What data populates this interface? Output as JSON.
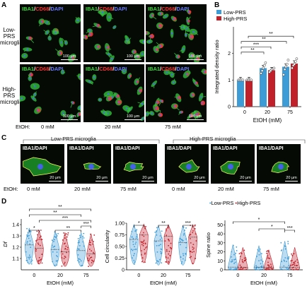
{
  "panels": {
    "A": "A",
    "B": "B",
    "C": "C",
    "D": "D"
  },
  "panelA": {
    "label_iba1": "IBA1",
    "label_cd68": "CD68",
    "label_dapi": "DAPI",
    "slash": "/",
    "row_low": [
      "Low-PRS",
      "microglia"
    ],
    "row_high": [
      "High-PRS",
      "microglia"
    ],
    "scalebar": "100 μm",
    "etoh_label": "EtOH:",
    "conditions": [
      "0 mM",
      "20 mM",
      "75 mM"
    ]
  },
  "panelB": {
    "ylabel": "Integrated density ratio",
    "xlabel": "EtOH (mM)",
    "legend": [
      "Low-PRS",
      "High-PRS"
    ],
    "sig": [
      "**",
      "***",
      "**",
      "**"
    ]
  },
  "panelC": {
    "group_low": "Low-PRS microglia",
    "group_high": "High-PRS microglia",
    "label": "IBA1/DAPI",
    "scalebar": "20 μm",
    "etoh_label": "EtOH:",
    "conditions": [
      "0 mM",
      "20 mM",
      "75 mM"
    ]
  },
  "panelD": {
    "legend": [
      "Low-PRS",
      "High-PRS"
    ],
    "xlabel": "EtOH (mM)",
    "plot1": {
      "ylabel": "Df",
      "sig": [
        "**",
        "**",
        "***",
        "*",
        "**",
        "***"
      ]
    },
    "plot2": {
      "ylabel": "Cell circularity",
      "sig": [
        "*",
        "**",
        "***"
      ]
    },
    "plot3": {
      "ylabel": "Spine ratio",
      "sig": [
        "*",
        "*",
        "***"
      ]
    }
  },
  "colors": {
    "low": "#3d9bd6",
    "high": "#c0202a",
    "green": "#3ddc3d",
    "red": "#ff3030",
    "blue": "#6a7bff"
  },
  "chart_data": [
    {
      "type": "bar",
      "categories": [
        "0",
        "20",
        "75"
      ],
      "series": [
        {
          "name": "Low-PRS",
          "values": [
            1.0,
            1.45,
            1.5
          ]
        },
        {
          "name": "High-PRS",
          "values": [
            1.0,
            1.37,
            1.62
          ]
        }
      ],
      "ylabel": "Integrated density ratio",
      "xlabel": "EtOH (mM)",
      "ylim": [
        0,
        3
      ],
      "yticks": [
        0,
        1,
        2
      ],
      "points": {
        "Low-PRS": [
          [
            1.0,
            1.0,
            1.0,
            1.0,
            1.0
          ],
          [
            1.25,
            1.35,
            1.45,
            1.55,
            1.65
          ],
          [
            1.2,
            1.4,
            1.5,
            1.6,
            1.75
          ]
        ],
        "High-PRS": [
          [
            1.0,
            1.0,
            1.0,
            1.0,
            1.0
          ],
          [
            1.3,
            1.35,
            1.4,
            1.42,
            1.45
          ],
          [
            1.45,
            1.55,
            1.6,
            1.7,
            1.8
          ]
        ]
      }
    },
    {
      "type": "violin",
      "categories": [
        "0",
        "20",
        "75"
      ],
      "ylabel": "Df",
      "xlabel": "EtOH (mM)",
      "ylim": [
        1.0,
        1.45
      ],
      "yticks": [
        1.1,
        1.2,
        1.3,
        1.4
      ],
      "series": [
        {
          "name": "Low-PRS",
          "median": [
            1.22,
            1.18,
            1.17
          ],
          "min": [
            1.05,
            1.03,
            1.03
          ],
          "max": [
            1.37,
            1.34,
            1.33
          ]
        },
        {
          "name": "High-PRS",
          "median": [
            1.19,
            1.16,
            1.14
          ],
          "min": [
            1.05,
            1.03,
            1.03
          ],
          "max": [
            1.35,
            1.33,
            1.32
          ]
        }
      ]
    },
    {
      "type": "violin",
      "categories": [
        "0",
        "20",
        "75"
      ],
      "ylabel": "Cell circularity",
      "xlabel": "EtOH (mM)",
      "ylim": [
        0,
        1.0
      ],
      "yticks": [
        0,
        0.25,
        0.5,
        0.75,
        1.0
      ],
      "series": [
        {
          "name": "Low-PRS",
          "median": [
            0.65,
            0.62,
            0.58
          ],
          "min": [
            0.12,
            0.1,
            0.1
          ],
          "max": [
            0.97,
            0.95,
            0.95
          ]
        },
        {
          "name": "High-PRS",
          "median": [
            0.75,
            0.72,
            0.7
          ],
          "min": [
            0.15,
            0.12,
            0.12
          ],
          "max": [
            0.98,
            0.97,
            0.97
          ]
        }
      ]
    },
    {
      "type": "violin",
      "categories": [
        "0",
        "20",
        "75"
      ],
      "ylabel": "Spine ratio",
      "xlabel": "EtOH (mM)",
      "ylim": [
        0,
        55
      ],
      "yticks": [
        0,
        10,
        20,
        30,
        40,
        50
      ],
      "series": [
        {
          "name": "Low-PRS",
          "median": [
            3,
            3,
            3
          ],
          "min": [
            0,
            0,
            0
          ],
          "max": [
            28,
            27,
            32
          ]
        },
        {
          "name": "High-PRS",
          "median": [
            2.5,
            2.5,
            2.5
          ],
          "min": [
            0,
            0,
            0
          ],
          "max": [
            25,
            22,
            25
          ]
        }
      ]
    }
  ]
}
